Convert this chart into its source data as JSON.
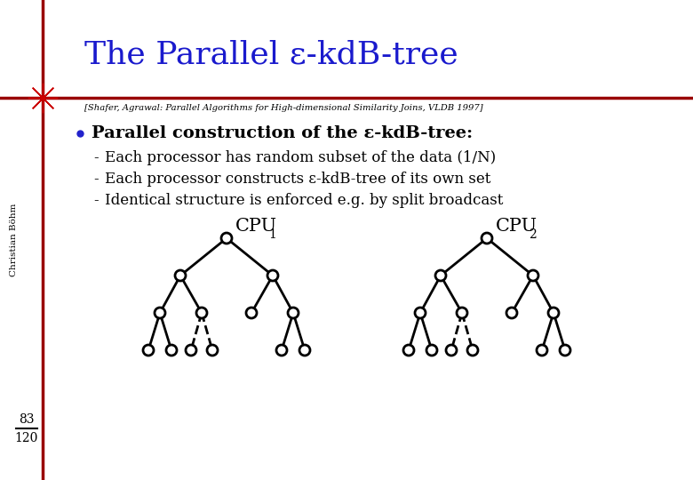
{
  "title": "The Parallel ε-kdB-tree",
  "title_color": "#1a1acd",
  "title_fontsize": 26,
  "reference": "[Shafer, Agrawal: Parallel Algorithms for High-dimensional Similarity Joins, VLDB 1997]",
  "bullet": "Parallel construction of the ε-kdB-tree:",
  "sub_bullets": [
    "Each processor has random subset of the data (1/N)",
    "Each processor constructs ε-kdB-tree of its own set",
    "Identical structure is enforced e.g. by split broadcast"
  ],
  "background_color": "#ffffff",
  "line_color": "#990000",
  "sidebar_color": "#990000",
  "star_color": "#cc0000",
  "tree_color": "#000000",
  "author": "Christian Böhm",
  "page_num": "83",
  "page_den": "120"
}
